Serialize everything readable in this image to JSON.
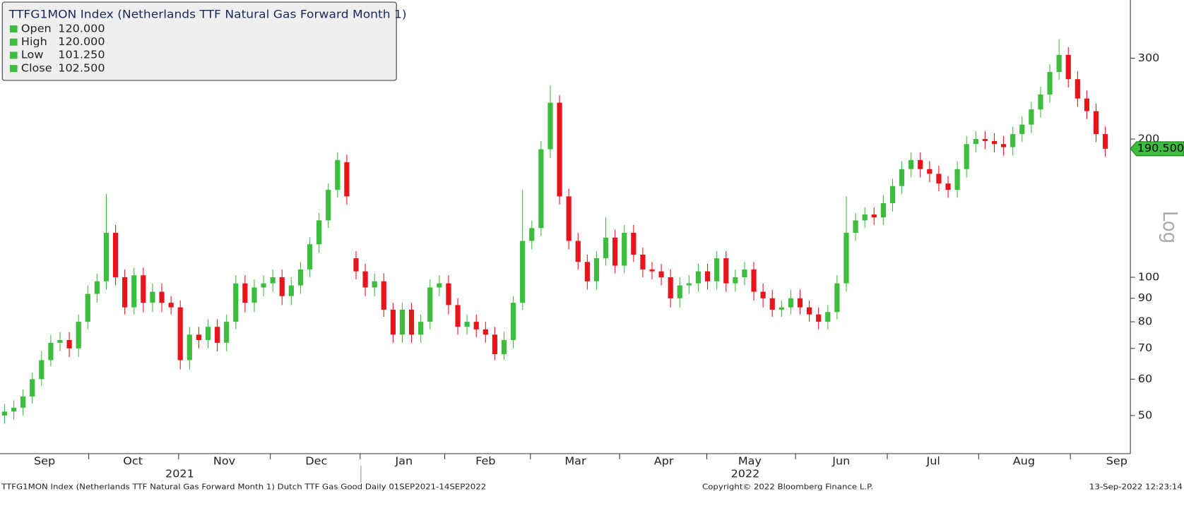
{
  "chart_data": {
    "type": "candlestick",
    "legend": {
      "title": "TTFG1MON Index (Netherlands TTF Natural Gas Forward Month 1)",
      "items": [
        {
          "label": "Open",
          "value": "120.000"
        },
        {
          "label": "High",
          "value": "120.000"
        },
        {
          "label": "Low",
          "value": "101.250"
        },
        {
          "label": "Close",
          "value": "102.500"
        }
      ]
    },
    "up_color": "#3dbd3d",
    "down_color": "#e8141c",
    "log_scale": true,
    "scale_label": "Log",
    "ylim": [
      41.3,
      401.6
    ],
    "yticks": [
      50,
      60,
      70,
      80,
      90,
      100,
      200,
      300
    ],
    "xlim": [
      -0.49,
      121.71
    ],
    "xticks": [
      {
        "value": 4.33,
        "label": "Sep"
      },
      {
        "value": 13.88,
        "label": "Oct"
      },
      {
        "value": 23.76,
        "label": "Nov"
      },
      {
        "value": 33.71,
        "label": "Dec"
      },
      {
        "value": 43.18,
        "label": "Jan"
      },
      {
        "value": 52,
        "label": "Feb"
      },
      {
        "value": 61.71,
        "label": "Mar"
      },
      {
        "value": 71.27,
        "label": "Apr"
      },
      {
        "value": 80.57,
        "label": "May"
      },
      {
        "value": 90.45,
        "label": "Jun"
      },
      {
        "value": 100.41,
        "label": "Jul"
      },
      {
        "value": 110.2,
        "label": "Aug"
      },
      {
        "value": 120.24,
        "label": "Sep"
      }
    ],
    "year_labels": [
      {
        "value": 18.94,
        "label": "2021"
      },
      {
        "value": 80.08,
        "label": "2022"
      }
    ],
    "last_price": {
      "value": 190.5,
      "label": "190.500"
    },
    "ohlc": {
      "open": [
        50,
        51,
        52,
        55,
        60,
        66,
        72,
        73,
        70,
        80,
        92,
        98,
        125,
        100,
        86,
        101,
        88,
        93,
        88,
        86,
        66,
        75,
        73,
        78,
        72,
        80,
        97,
        88,
        95,
        97,
        100,
        91,
        96,
        104,
        118,
        133,
        155,
        178,
        110,
        103,
        95,
        98,
        85,
        75,
        85,
        75,
        80,
        95,
        97,
        87,
        78,
        80,
        77,
        75,
        68,
        73,
        88,
        120,
        128,
        190,
        240,
        150,
        120,
        108,
        98,
        110,
        122,
        106,
        125,
        112,
        104,
        103,
        100,
        90,
        96,
        97,
        103,
        98,
        110,
        97,
        100,
        104,
        93,
        90,
        85,
        86,
        90,
        86,
        83,
        80,
        84,
        97,
        125,
        133,
        137,
        135,
        145,
        158,
        172,
        180,
        172,
        168,
        160,
        155,
        172,
        195,
        200,
        198,
        195,
        192,
        205,
        215,
        232,
        250,
        280,
        305,
        270,
        245,
        230,
        205
      ],
      "high": [
        53,
        54,
        57,
        62,
        69,
        75,
        76,
        76,
        83,
        96,
        102,
        152,
        130,
        104,
        105,
        105,
        97,
        97,
        91,
        89,
        78,
        78,
        81,
        81,
        83,
        101,
        101,
        99,
        101,
        104,
        104,
        100,
        108,
        122,
        138,
        160,
        187,
        185,
        114,
        107,
        102,
        102,
        88,
        88,
        88,
        83,
        99,
        101,
        101,
        90,
        83,
        83,
        80,
        78,
        76,
        91,
        155,
        133,
        198,
        262,
        249,
        156,
        125,
        112,
        114,
        135,
        127,
        130,
        130,
        116,
        108,
        107,
        104,
        100,
        101,
        107,
        107,
        114,
        114,
        104,
        108,
        108,
        97,
        94,
        89,
        94,
        94,
        89,
        86,
        87,
        101,
        150,
        138,
        142,
        142,
        151,
        164,
        179,
        187,
        187,
        179,
        175,
        166,
        179,
        203,
        208,
        208,
        206,
        203,
        213,
        224,
        241,
        260,
        291,
        330,
        317,
        281,
        255,
        239,
        213
      ],
      "low": [
        48,
        49,
        50,
        53,
        58,
        64,
        69,
        67,
        67,
        77,
        88,
        94,
        96,
        83,
        83,
        84,
        84,
        84,
        83,
        63,
        63,
        70,
        70,
        69,
        69,
        77,
        84,
        84,
        91,
        93,
        87,
        87,
        92,
        100,
        113,
        128,
        149,
        144,
        99,
        91,
        91,
        82,
        72,
        72,
        72,
        72,
        77,
        91,
        83,
        75,
        75,
        74,
        72,
        66,
        66,
        70,
        85,
        115,
        123,
        182,
        144,
        115,
        104,
        94,
        94,
        106,
        102,
        102,
        108,
        100,
        99,
        96,
        86,
        86,
        92,
        93,
        94,
        94,
        93,
        93,
        96,
        89,
        86,
        82,
        82,
        83,
        83,
        80,
        77,
        77,
        81,
        93,
        120,
        128,
        130,
        130,
        139,
        152,
        165,
        165,
        161,
        154,
        149,
        149,
        165,
        187,
        190,
        187,
        184,
        184,
        197,
        206,
        223,
        240,
        269,
        259,
        235,
        221,
        197,
        183
      ],
      "close": [
        51,
        52,
        55,
        60,
        66,
        72,
        73,
        70,
        80,
        92,
        98,
        125,
        100,
        86,
        101,
        88,
        93,
        88,
        86,
        66,
        75,
        73,
        78,
        72,
        80,
        97,
        88,
        95,
        97,
        100,
        91,
        96,
        104,
        118,
        133,
        155,
        180,
        150,
        103,
        95,
        98,
        85,
        75,
        85,
        75,
        80,
        95,
        97,
        87,
        78,
        80,
        77,
        75,
        68,
        73,
        88,
        120,
        128,
        190,
        240,
        150,
        120,
        108,
        98,
        110,
        122,
        106,
        125,
        112,
        104,
        103,
        100,
        90,
        96,
        97,
        103,
        98,
        110,
        97,
        100,
        104,
        93,
        90,
        85,
        86,
        90,
        86,
        83,
        80,
        84,
        97,
        125,
        133,
        137,
        135,
        145,
        158,
        172,
        180,
        172,
        168,
        160,
        155,
        172,
        195,
        200,
        198,
        195,
        192,
        205,
        215,
        232,
        250,
        280,
        305,
        270,
        245,
        230,
        205,
        190.5
      ]
    },
    "footer": {
      "source": "TTFG1MON Index (Netherlands TTF Natural Gas Forward Month 1) Dutch TTF Gas Good  Daily 01SEP2021-14SEP2022",
      "copyright": "Copyright© 2022 Bloomberg Finance L.P.",
      "timestamp": "13-Sep-2022 12:23:14"
    }
  }
}
